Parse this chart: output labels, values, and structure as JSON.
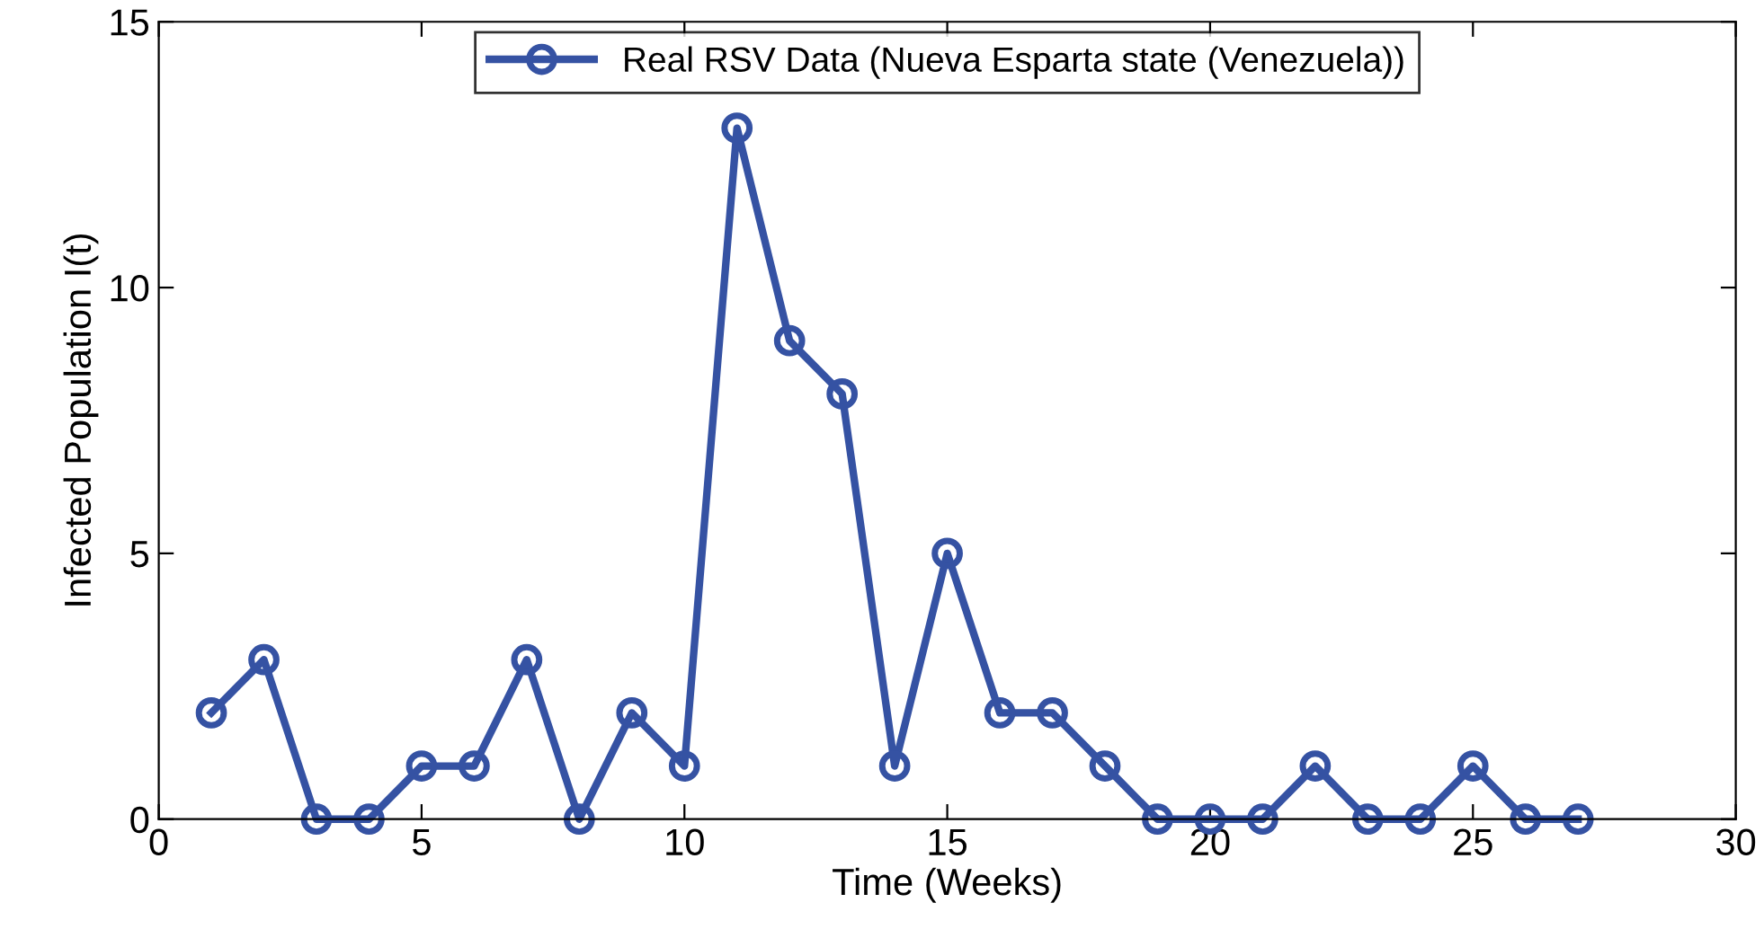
{
  "chart_data": {
    "type": "line",
    "xlabel": "Time (Weeks)",
    "ylabel": "Infected Population I(t)",
    "x": [
      1,
      2,
      3,
      4,
      5,
      6,
      7,
      8,
      9,
      10,
      11,
      12,
      13,
      14,
      15,
      16,
      17,
      18,
      19,
      20,
      21,
      22,
      23,
      24,
      25,
      26,
      27
    ],
    "series": [
      {
        "name": "Real RSV Data (Nueva Esparta state (Venezuela))",
        "color": "#3552a3",
        "values": [
          2,
          3,
          0,
          0,
          1,
          1,
          3,
          0,
          2,
          1,
          13,
          9,
          8,
          1,
          5,
          2,
          2,
          1,
          0,
          0,
          0,
          1,
          0,
          0,
          1,
          0,
          0
        ]
      }
    ],
    "xlim": [
      0,
      30
    ],
    "xticks": [
      0,
      5,
      10,
      15,
      20,
      25,
      30
    ],
    "ylim": [
      0,
      15
    ],
    "yticks": [
      0,
      5,
      10,
      15
    ],
    "grid": false,
    "legend": "top",
    "marker": "circle",
    "line_style": "solid"
  }
}
